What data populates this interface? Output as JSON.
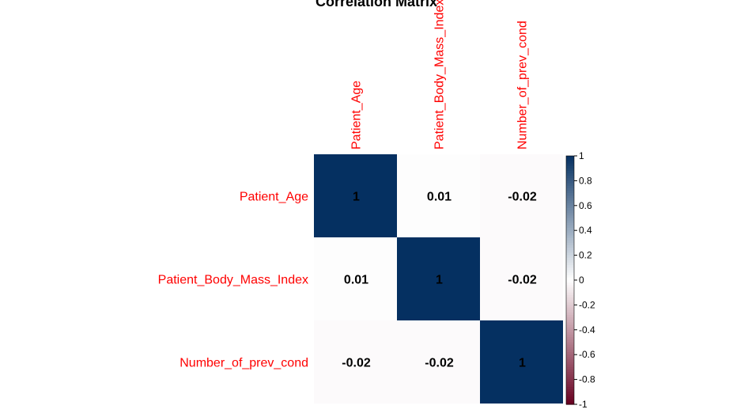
{
  "chart_data": {
    "type": "heatmap",
    "title": "Correlation Matrix",
    "variables": [
      "Patient_Age",
      "Patient_Body_Mass_Index",
      "Number_of_prev_cond"
    ],
    "matrix": [
      [
        1,
        0.01,
        -0.02
      ],
      [
        0.01,
        1,
        -0.02
      ],
      [
        -0.02,
        -0.02,
        1
      ]
    ],
    "value_labels": [
      [
        "1",
        "0.01",
        "-0.02"
      ],
      [
        "0.01",
        "1",
        "-0.02"
      ],
      [
        "-0.02",
        "-0.02",
        "1"
      ]
    ],
    "label_color": "#ff0000",
    "color_scale": {
      "range": [
        -1,
        1
      ],
      "low": "#67001f",
      "mid": "#ffffff",
      "high": "#053061",
      "ticks": [
        "1",
        "0.8",
        "0.6",
        "0.4",
        "0.2",
        "0",
        "-0.2",
        "-0.4",
        "-0.6",
        "-0.8",
        "-1"
      ]
    },
    "legend": "right",
    "grid": false
  }
}
